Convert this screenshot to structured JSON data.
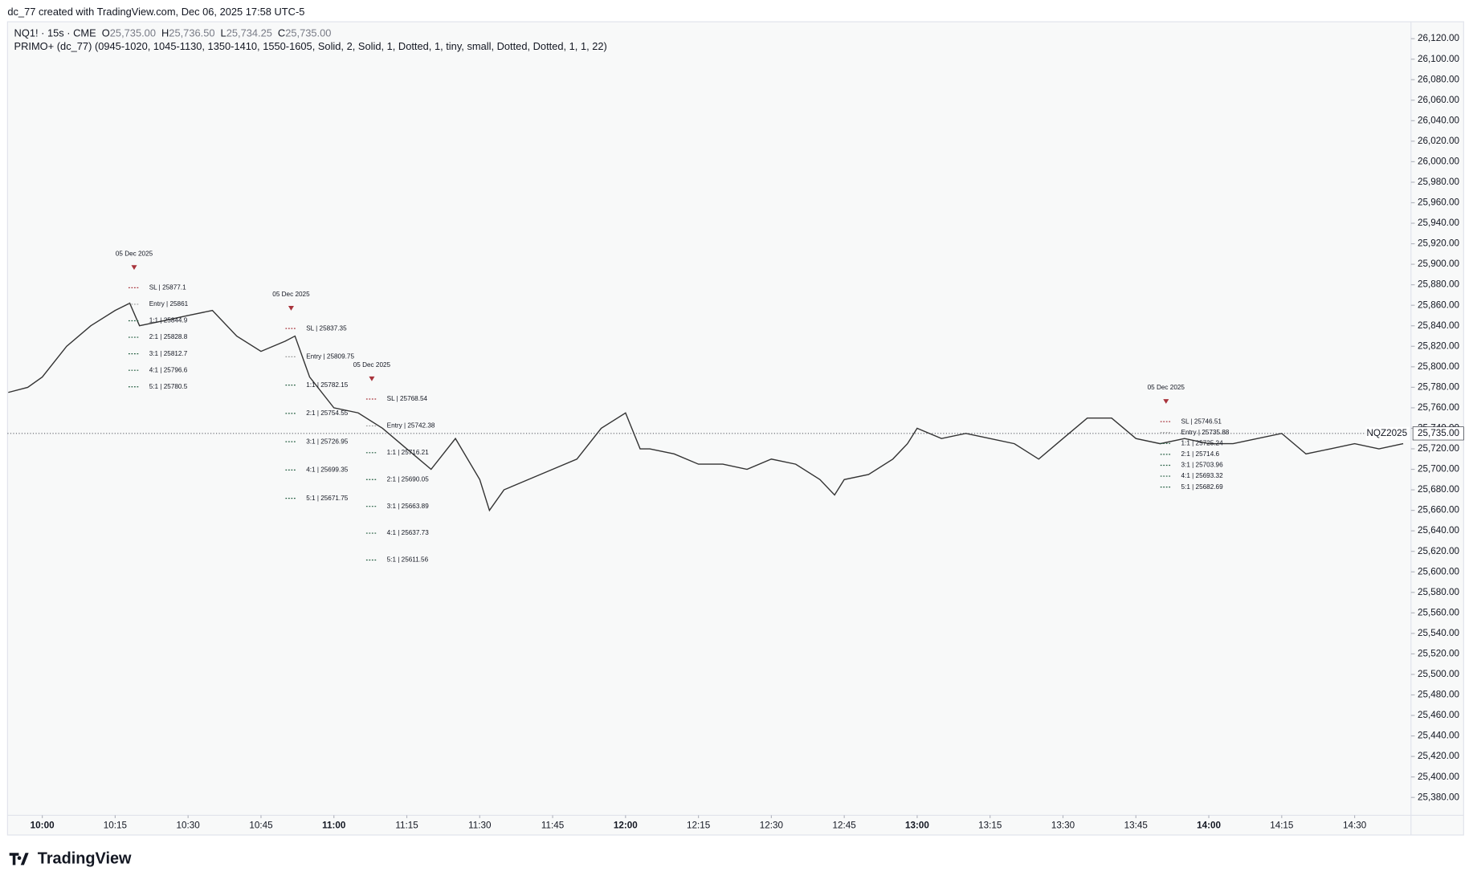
{
  "header": {
    "credit": "dc_77 created with TradingView.com, Dec 06, 2025 17:58 UTC-5",
    "symbol": "NQ1! · 15s · CME",
    "ohlc": [
      {
        "key": "O",
        "label": "25,735.00"
      },
      {
        "key": "H",
        "label": "25,736.50"
      },
      {
        "key": "L",
        "label": "25,734.25"
      },
      {
        "key": "C",
        "label": "25,735.00"
      }
    ],
    "indicator": "PRIMO+ (dc_77) (0945-1020, 1045-1130, 1350-1410, 1550-1605, Solid, 2, Solid, 1, Dotted, 1, tiny, small, Dotted, Dotted, 1, 1, 22)"
  },
  "footer": {
    "logo": "TradingView"
  },
  "chart_data": {
    "type": "line",
    "color": "#333333",
    "x": [
      593,
      597,
      600,
      605,
      610,
      615,
      618,
      620,
      625,
      630,
      635,
      640,
      645,
      650,
      652,
      655,
      660,
      665,
      670,
      675,
      680,
      685,
      690,
      692,
      695,
      700,
      705,
      710,
      715,
      720,
      723,
      725,
      730,
      735,
      740,
      745,
      750,
      755,
      760,
      763,
      765,
      770,
      775,
      778,
      780,
      785,
      790,
      795,
      800,
      805,
      810,
      815,
      820,
      825,
      830,
      835,
      840,
      845,
      850,
      855,
      860,
      865,
      870,
      875,
      880
    ],
    "values": [
      25775,
      25780,
      25790,
      25820,
      25840,
      25855,
      25862,
      25840,
      25845,
      25850,
      25855,
      25830,
      25815,
      25825,
      25830,
      25790,
      25760,
      25755,
      25740,
      25720,
      25700,
      25730,
      25690,
      25660,
      25680,
      25690,
      25700,
      25710,
      25740,
      25755,
      25720,
      25720,
      25715,
      25705,
      25705,
      25700,
      25710,
      25705,
      25690,
      25675,
      25690,
      25695,
      25710,
      25725,
      25740,
      25730,
      25735,
      25730,
      25725,
      25710,
      25730,
      25750,
      25750,
      25730,
      25725,
      25730,
      25725,
      25725,
      25730,
      25735,
      25715,
      25720,
      25725,
      25720,
      25725
    ],
    "xlim": [
      592.85,
      881.6
    ],
    "xticks": [
      {
        "value": 600,
        "label": "10:00"
      },
      {
        "value": 615,
        "label": "10:15"
      },
      {
        "value": 630,
        "label": "10:30"
      },
      {
        "value": 645,
        "label": "10:45"
      },
      {
        "value": 660,
        "label": "11:00"
      },
      {
        "value": 675,
        "label": "11:15"
      },
      {
        "value": 690,
        "label": "11:30"
      },
      {
        "value": 705,
        "label": "11:45"
      },
      {
        "value": 720,
        "label": "12:00"
      },
      {
        "value": 735,
        "label": "12:15"
      },
      {
        "value": 750,
        "label": "12:30"
      },
      {
        "value": 765,
        "label": "12:45"
      },
      {
        "value": 780,
        "label": "13:00"
      },
      {
        "value": 795,
        "label": "13:15"
      },
      {
        "value": 810,
        "label": "13:30"
      },
      {
        "value": 825,
        "label": "13:45"
      },
      {
        "value": 840,
        "label": "14:00"
      },
      {
        "value": 855,
        "label": "14:15"
      },
      {
        "value": 870,
        "label": "14:30"
      }
    ],
    "ylim": [
      25362.6,
      26136.5
    ],
    "yticks": [
      {
        "value": 25380,
        "label": "25,380.00"
      },
      {
        "value": 25400,
        "label": "25,400.00"
      },
      {
        "value": 25420,
        "label": "25,420.00"
      },
      {
        "value": 25440,
        "label": "25,440.00"
      },
      {
        "value": 25460,
        "label": "25,460.00"
      },
      {
        "value": 25480,
        "label": "25,480.00"
      },
      {
        "value": 25500,
        "label": "25,500.00"
      },
      {
        "value": 25520,
        "label": "25,520.00"
      },
      {
        "value": 25540,
        "label": "25,540.00"
      },
      {
        "value": 25560,
        "label": "25,560.00"
      },
      {
        "value": 25580,
        "label": "25,580.00"
      },
      {
        "value": 25600,
        "label": "25,600.00"
      },
      {
        "value": 25620,
        "label": "25,620.00"
      },
      {
        "value": 25640,
        "label": "25,640.00"
      },
      {
        "value": 25660,
        "label": "25,660.00"
      },
      {
        "value": 25680,
        "label": "25,680.00"
      },
      {
        "value": 25700,
        "label": "25,700.00"
      },
      {
        "value": 25720,
        "label": "25,720.00"
      },
      {
        "value": 25740,
        "label": "25,740.00"
      },
      {
        "value": 25760,
        "label": "25,760.00"
      },
      {
        "value": 25780,
        "label": "25,780.00"
      },
      {
        "value": 25800,
        "label": "25,800.00"
      },
      {
        "value": 25820,
        "label": "25,820.00"
      },
      {
        "value": 25840,
        "label": "25,840.00"
      },
      {
        "value": 25860,
        "label": "25,860.00"
      },
      {
        "value": 25880,
        "label": "25,880.00"
      },
      {
        "value": 25900,
        "label": "25,900.00"
      },
      {
        "value": 25920,
        "label": "25,920.00"
      },
      {
        "value": 25940,
        "label": "25,940.00"
      },
      {
        "value": 25960,
        "label": "25,960.00"
      },
      {
        "value": 25980,
        "label": "25,980.00"
      },
      {
        "value": 26000,
        "label": "26,000.00"
      },
      {
        "value": 26020,
        "label": "26,020.00"
      },
      {
        "value": 26040,
        "label": "26,040.00"
      },
      {
        "value": 26060,
        "label": "26,060.00"
      },
      {
        "value": 26080,
        "label": "26,080.00"
      },
      {
        "value": 26100,
        "label": "26,100.00"
      },
      {
        "value": 26120,
        "label": "26,120.00"
      }
    ],
    "last_price": {
      "value": 25735,
      "label": "25,735.00",
      "symbol": "NQZ2025"
    },
    "setups": [
      {
        "date": "05 Dec 2025",
        "x": 618.9,
        "levels": [
          {
            "label": "SL | 25877.1",
            "value": 25877.1
          },
          {
            "label": "Entry | 25861",
            "value": 25861
          },
          {
            "label": "1:1 | 25844.9",
            "value": 25844.9
          },
          {
            "label": "2:1 | 25828.8",
            "value": 25828.8
          },
          {
            "label": "3:1 | 25812.7",
            "value": 25812.7
          },
          {
            "label": "4:1 | 25796.6",
            "value": 25796.6
          },
          {
            "label": "5:1 | 25780.5",
            "value": 25780.5
          }
        ]
      },
      {
        "date": "05 Dec 2025",
        "x": 651.2,
        "levels": [
          {
            "label": "SL | 25837.35",
            "value": 25837.35
          },
          {
            "label": "Entry | 25809.75",
            "value": 25809.75
          },
          {
            "label": "1:1 | 25782.15",
            "value": 25782.15
          },
          {
            "label": "2:1 | 25754.55",
            "value": 25754.55
          },
          {
            "label": "3:1 | 25726.95",
            "value": 25726.95
          },
          {
            "label": "4:1 | 25699.35",
            "value": 25699.35
          },
          {
            "label": "5:1 | 25671.75",
            "value": 25671.75
          }
        ]
      },
      {
        "date": "05 Dec 2025",
        "x": 667.8,
        "levels": [
          {
            "label": "SL | 25768.54",
            "value": 25768.54
          },
          {
            "label": "Entry | 25742.38",
            "value": 25742.38
          },
          {
            "label": "1:1 | 25716.21",
            "value": 25716.21
          },
          {
            "label": "2:1 | 25690.05",
            "value": 25690.05
          },
          {
            "label": "3:1 | 25663.89",
            "value": 25663.89
          },
          {
            "label": "4:1 | 25637.73",
            "value": 25637.73
          },
          {
            "label": "5:1 | 25611.56",
            "value": 25611.56
          }
        ]
      },
      {
        "date": "05 Dec 2025",
        "x": 831.2,
        "levels": [
          {
            "label": "SL | 25746.51",
            "value": 25746.51
          },
          {
            "label": "Entry | 25735.88",
            "value": 25735.88
          },
          {
            "label": "1:1 | 25725.24",
            "value": 25725.24
          },
          {
            "label": "2:1 | 25714.6",
            "value": 25714.6
          },
          {
            "label": "3:1 | 25703.96",
            "value": 25703.96
          },
          {
            "label": "4:1 | 25693.32",
            "value": 25693.32
          },
          {
            "label": "5:1 | 25682.69",
            "value": 25682.69
          }
        ]
      }
    ]
  }
}
